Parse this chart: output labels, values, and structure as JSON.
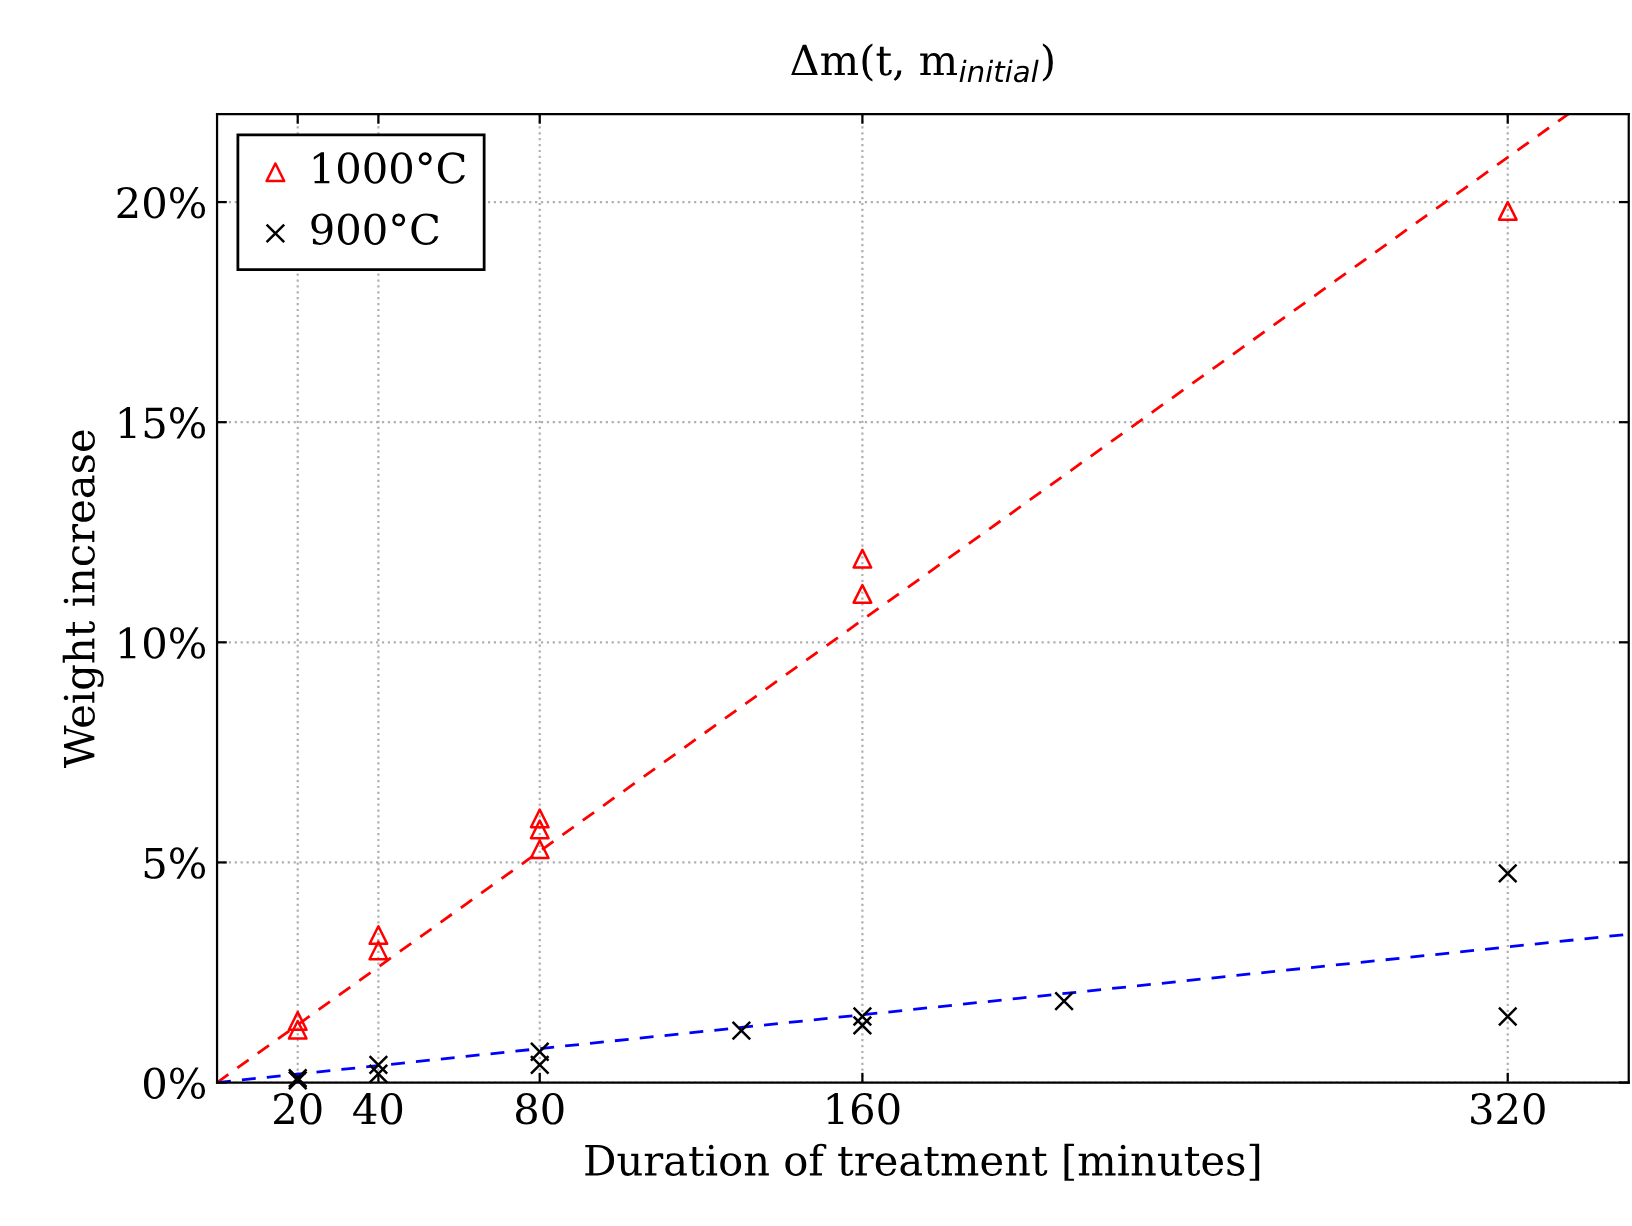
{
  "chart_data": {
    "type": "scatter",
    "title": "Δm(t, m$_{initial}$)",
    "xlabel": "Duration of treatment [minutes]",
    "ylabel": "Weight increase",
    "xlim": [
      0,
      350
    ],
    "xticks": [
      20,
      40,
      80,
      160,
      320
    ],
    "ylim": [
      0,
      22
    ],
    "yticks": [
      {
        "value": 0,
        "label": "0%"
      },
      {
        "value": 5,
        "label": "5%"
      },
      {
        "value": 10,
        "label": "10%"
      },
      {
        "value": 15,
        "label": "15%"
      },
      {
        "value": 20,
        "label": "20%"
      }
    ],
    "grid": true,
    "legend": "top left",
    "series": [
      {
        "name": "1000°C",
        "color": "#ff0000",
        "marker": "triangle",
        "x": [
          20,
          20,
          40,
          40,
          80,
          80,
          80,
          160,
          160,
          320
        ],
        "values": [
          1.4,
          1.2,
          3.35,
          3.0,
          6.0,
          5.75,
          5.3,
          11.9,
          11.1,
          19.8
        ]
      },
      {
        "name": "900°C",
        "color": "#000000",
        "marker": "cross",
        "x": [
          20,
          20,
          40,
          40,
          80,
          80,
          130,
          160,
          160,
          210,
          320,
          320
        ],
        "values": [
          0.1,
          0.05,
          0.4,
          0.2,
          0.7,
          0.4,
          1.18,
          1.5,
          1.3,
          1.85,
          4.75,
          1.5
        ]
      },
      {
        "type": "line",
        "color": "#ff0000",
        "line_style": "dashed",
        "x": [
          0,
          335
        ],
        "values": [
          0,
          22
        ]
      },
      {
        "type": "line",
        "color": "#0000ff",
        "line_style": "dashed",
        "x": [
          0,
          350
        ],
        "values": [
          0,
          3.37
        ]
      }
    ]
  }
}
